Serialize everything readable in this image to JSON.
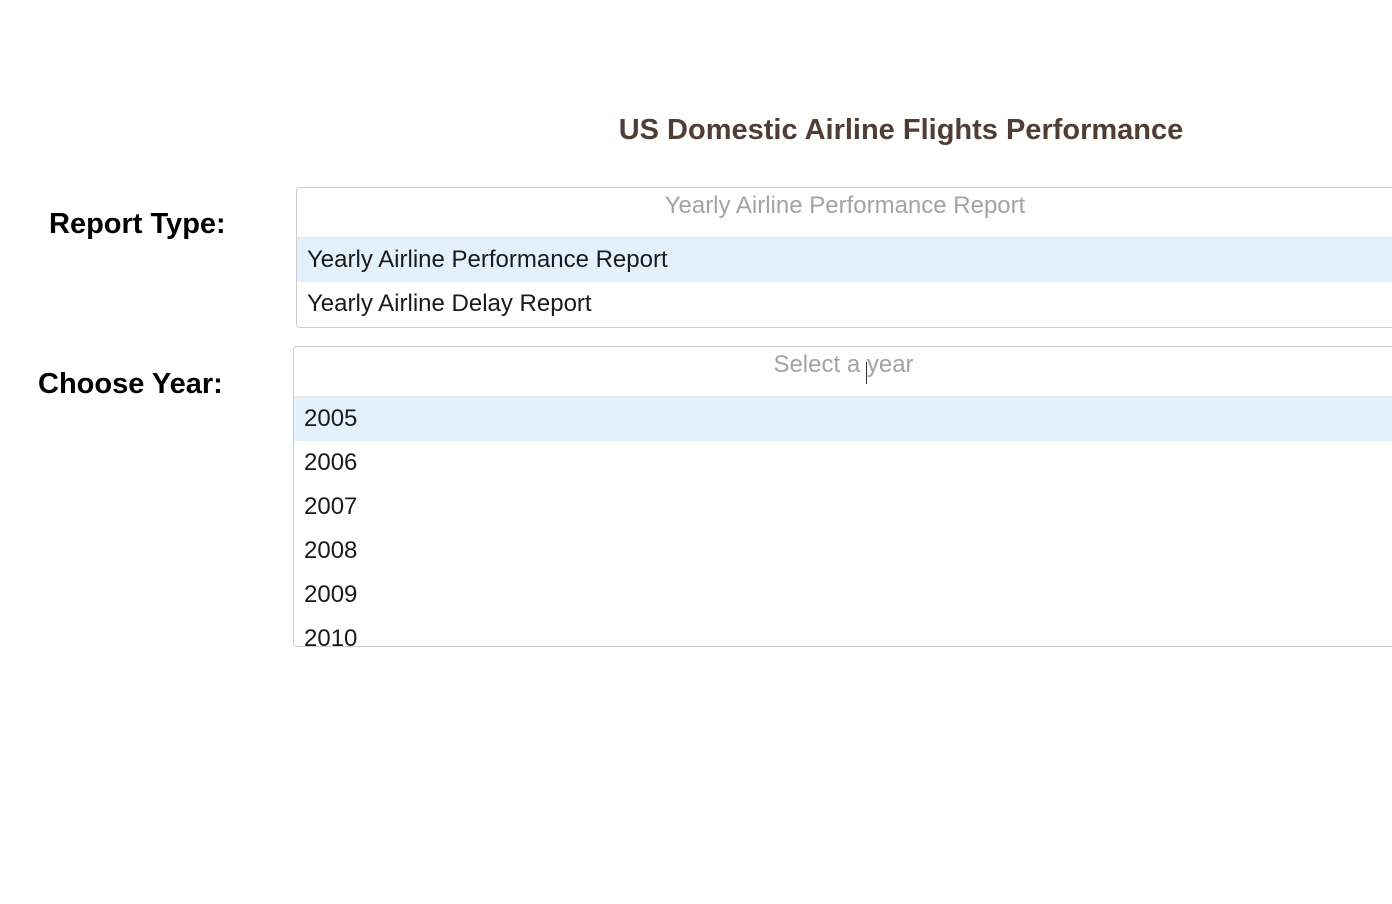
{
  "header": {
    "title": "US Domestic Airline Flights Performance"
  },
  "report_type": {
    "label": "Report Type:",
    "placeholder": "Yearly Airline Performance Report",
    "options": [
      "Yearly Airline Performance Report",
      "Yearly Airline Delay Report"
    ],
    "focused_option": "Yearly Airline Performance Report"
  },
  "year": {
    "label": "Choose Year:",
    "placeholder": "Select a year",
    "options": [
      "2005",
      "2006",
      "2007",
      "2008",
      "2009",
      "2010"
    ],
    "focused_option": "2005"
  },
  "colors": {
    "title": "#503D36",
    "focused_option_bg": "#e3f1fd",
    "placeholder": "#a3a3a3"
  }
}
